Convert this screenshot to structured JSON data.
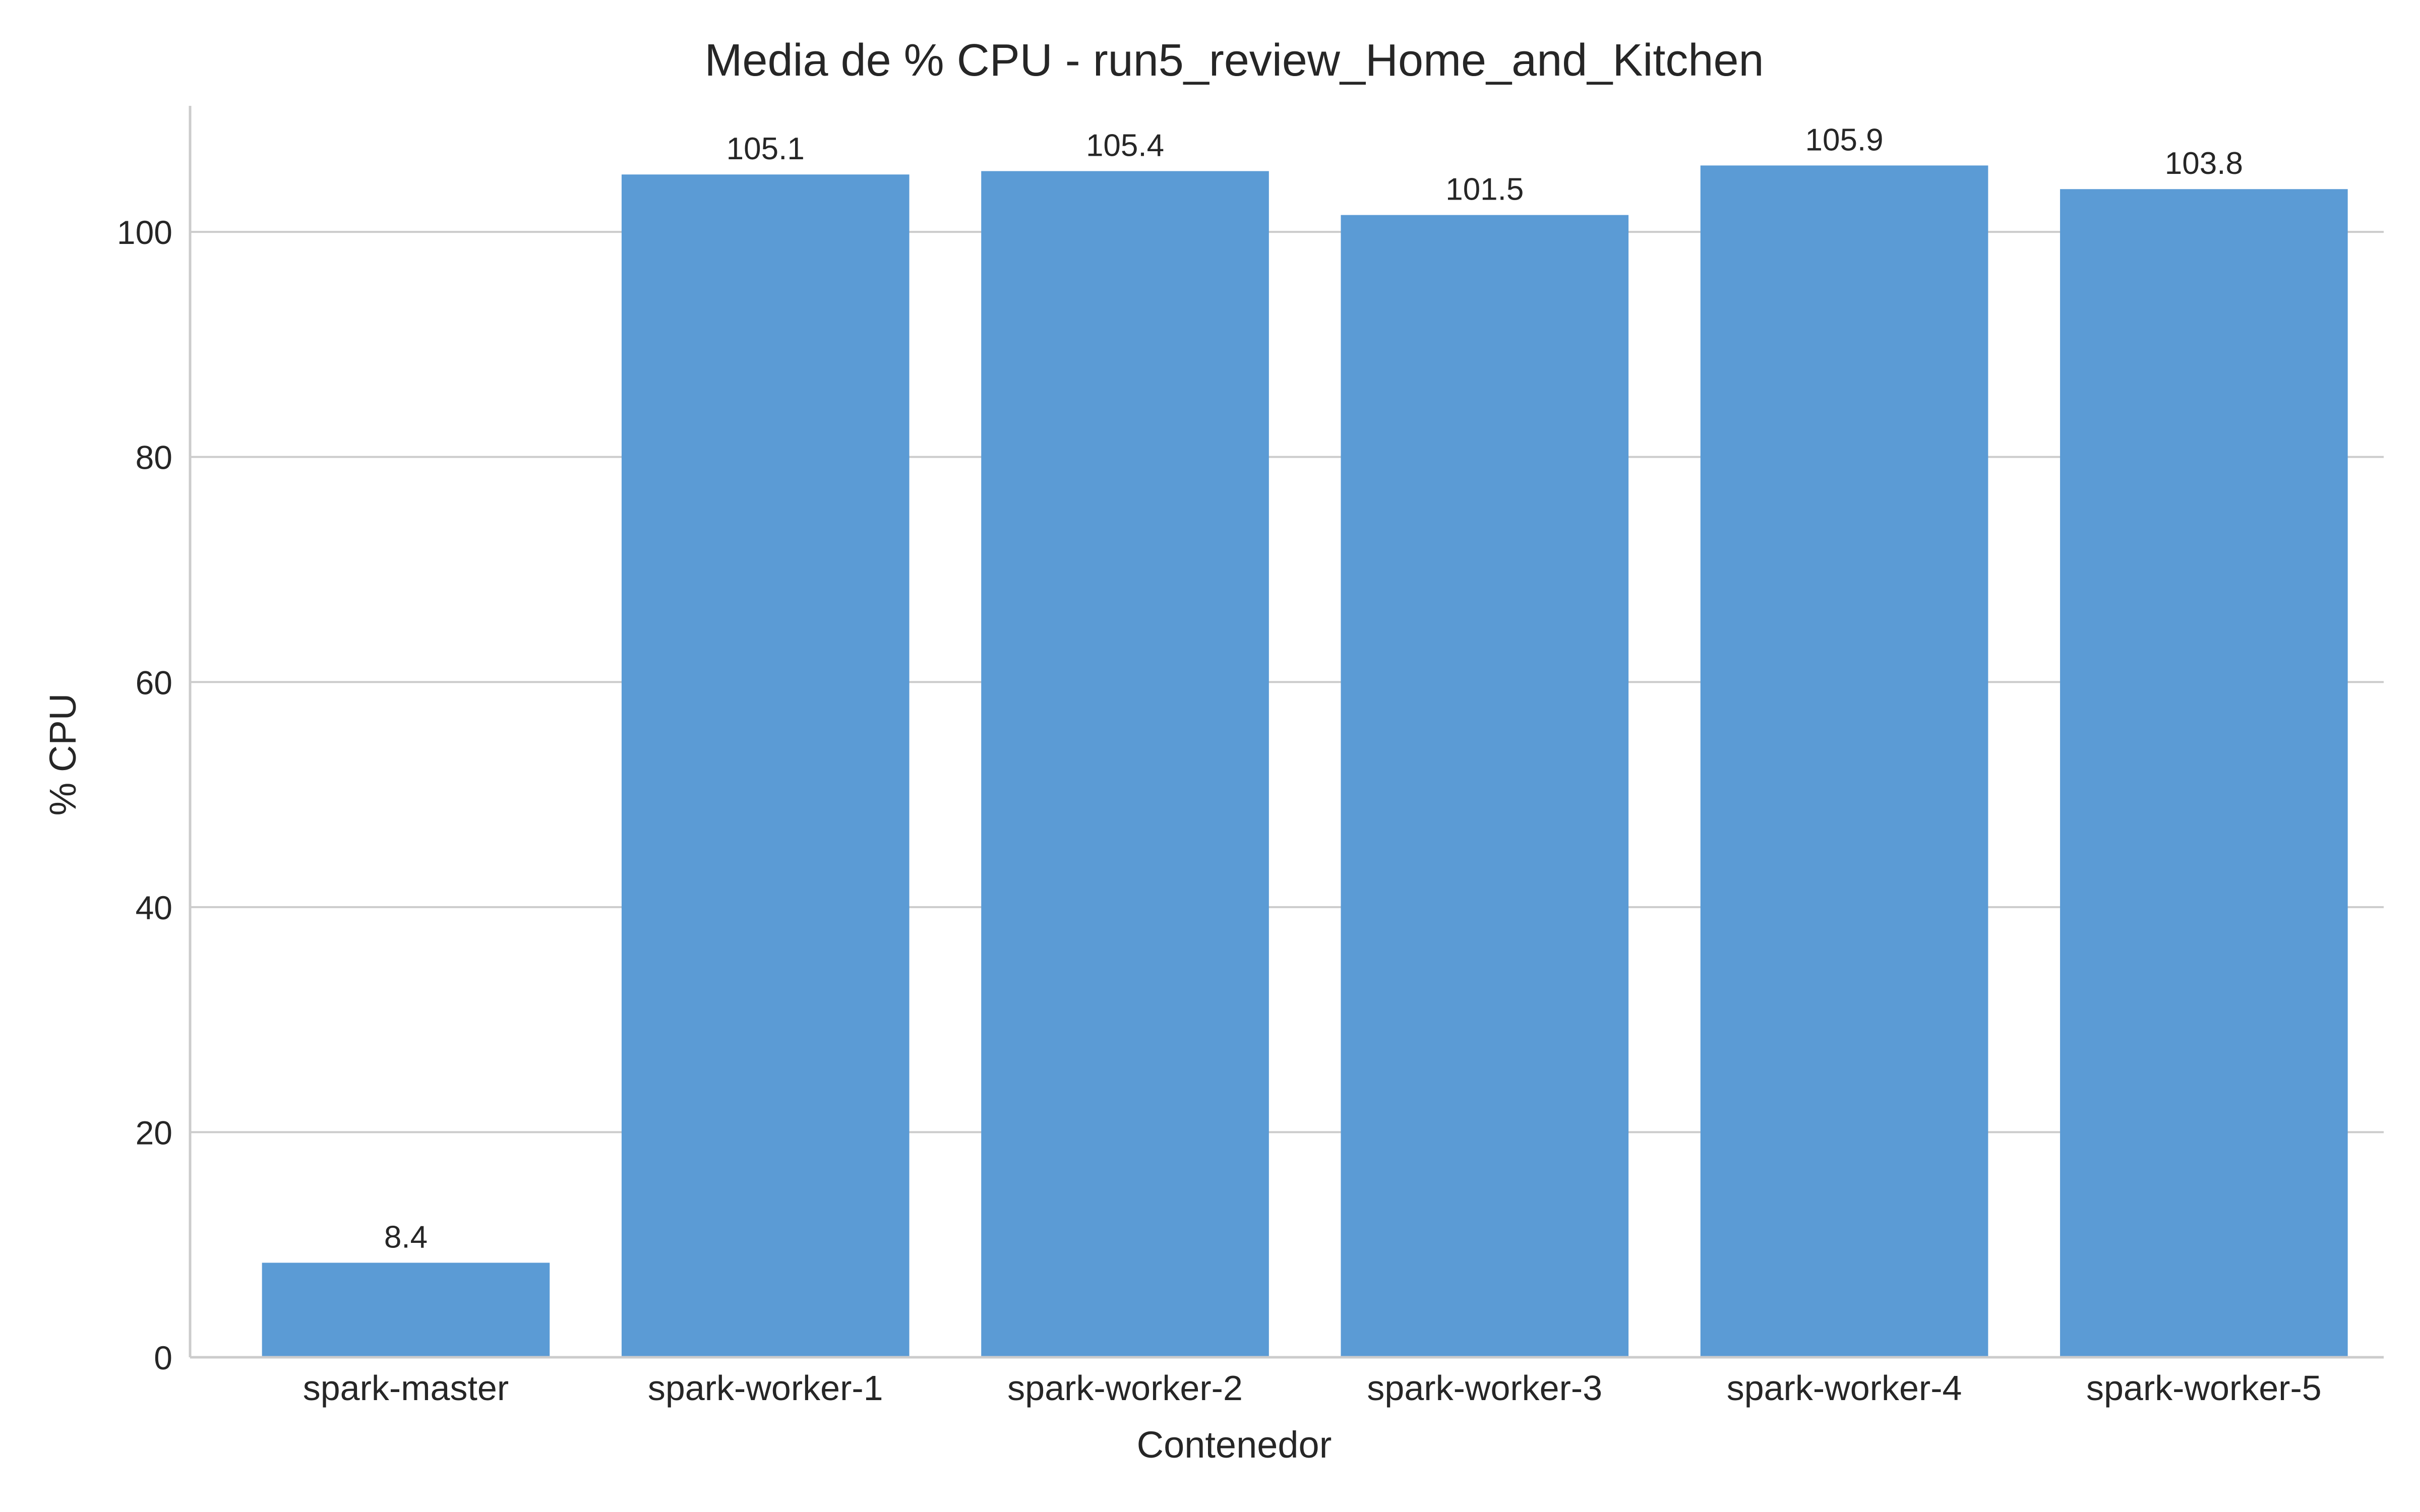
{
  "chart_data": {
    "type": "bar",
    "title": "Media de % CPU - run5_review_Home_and_Kitchen",
    "xlabel": "Contenedor",
    "ylabel": "% CPU",
    "categories": [
      "spark-master",
      "spark-worker-1",
      "spark-worker-2",
      "spark-worker-3",
      "spark-worker-4",
      "spark-worker-5"
    ],
    "values": [
      8.4,
      105.1,
      105.4,
      101.5,
      105.9,
      103.8
    ],
    "value_labels": [
      "8.4",
      "105.1",
      "105.4",
      "101.5",
      "105.9",
      "103.8"
    ],
    "yticks": [
      0,
      20,
      40,
      60,
      80,
      100
    ],
    "ylim": [
      0,
      111.2
    ],
    "grid": "horizontal",
    "bar_color": "#5B9BD5",
    "grid_color": "#cccccc",
    "axis_color": "#cccccc",
    "text_color": "#262626"
  }
}
